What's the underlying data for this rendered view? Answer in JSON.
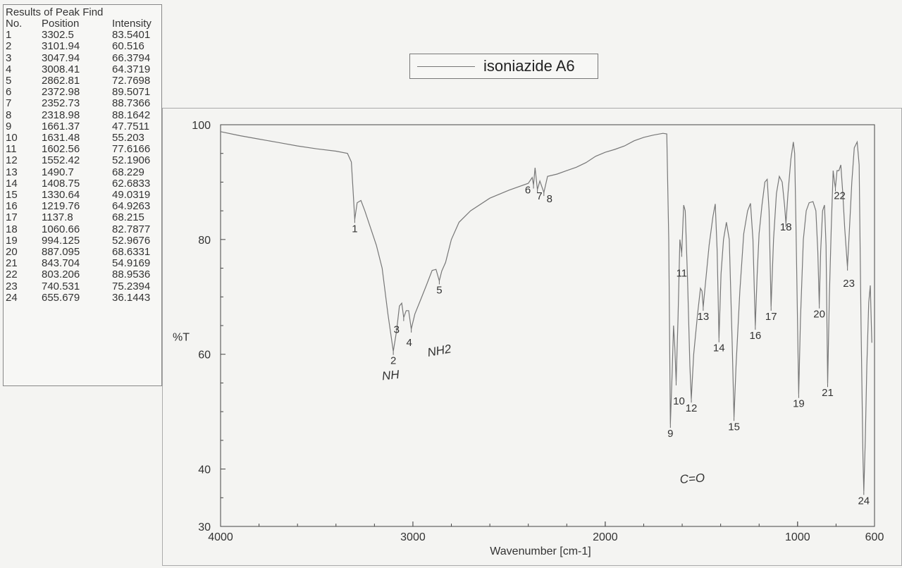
{
  "peak_table": {
    "title": "Results of Peak Find",
    "headers": [
      "No.",
      "Position",
      "Intensity"
    ],
    "rows": [
      [
        "1",
        "3302.5",
        "83.5401"
      ],
      [
        "2",
        "3101.94",
        "60.516"
      ],
      [
        "3",
        "3047.94",
        "66.3794"
      ],
      [
        "4",
        "3008.41",
        "64.3719"
      ],
      [
        "5",
        "2862.81",
        "72.7698"
      ],
      [
        "6",
        "2372.98",
        "89.5071"
      ],
      [
        "7",
        "2352.73",
        "88.7366"
      ],
      [
        "8",
        "2318.98",
        "88.1642"
      ],
      [
        "9",
        "1661.37",
        "47.7511"
      ],
      [
        "10",
        "1631.48",
        "55.203"
      ],
      [
        "11",
        "1602.56",
        "77.6166"
      ],
      [
        "12",
        "1552.42",
        "52.1906"
      ],
      [
        "13",
        "1490.7",
        "68.229"
      ],
      [
        "14",
        "1408.75",
        "62.6833"
      ],
      [
        "15",
        "1330.64",
        "49.0319"
      ],
      [
        "16",
        "1219.76",
        "64.9263"
      ],
      [
        "17",
        "1137.8",
        "68.215"
      ],
      [
        "18",
        "1060.66",
        "82.7877"
      ],
      [
        "19",
        "994.125",
        "52.9676"
      ],
      [
        "20",
        "887.095",
        "68.6331"
      ],
      [
        "21",
        "843.704",
        "54.9169"
      ],
      [
        "22",
        "803.206",
        "88.9536"
      ],
      [
        "23",
        "740.531",
        "75.2394"
      ],
      [
        "24",
        "655.679",
        "36.1443"
      ]
    ]
  },
  "chart_data": {
    "type": "line",
    "xlabel": "Wavenumber [cm-1]",
    "ylabel": "%T",
    "xlim": [
      4000,
      600
    ],
    "ylim": [
      30,
      100
    ],
    "x_ticks": [
      4000,
      3000,
      2000,
      1000,
      600
    ],
    "y_ticks": [
      100,
      80,
      60,
      40,
      30
    ],
    "legend": {
      "label": "isoniazide A6",
      "position": "top-center"
    },
    "series": [
      {
        "name": "isoniazide A6",
        "color": "#777777",
        "points": [
          [
            4000,
            98.8
          ],
          [
            3900,
            98.1
          ],
          [
            3800,
            97.5
          ],
          [
            3700,
            96.9
          ],
          [
            3600,
            96.3
          ],
          [
            3500,
            95.8
          ],
          [
            3400,
            95.4
          ],
          [
            3340,
            95.0
          ],
          [
            3320,
            93.5
          ],
          [
            3310,
            88
          ],
          [
            3302.5,
            83.5
          ],
          [
            3290,
            86.4
          ],
          [
            3270,
            86.8
          ],
          [
            3250,
            85
          ],
          [
            3220,
            82
          ],
          [
            3190,
            79
          ],
          [
            3160,
            75
          ],
          [
            3130,
            67
          ],
          [
            3101.94,
            60.5
          ],
          [
            3085,
            64
          ],
          [
            3070,
            68.4
          ],
          [
            3058,
            68.9
          ],
          [
            3047.94,
            66.4
          ],
          [
            3035,
            67.6
          ],
          [
            3022,
            67.6
          ],
          [
            3008.41,
            64.4
          ],
          [
            2990,
            67
          ],
          [
            2960,
            69.5
          ],
          [
            2930,
            72
          ],
          [
            2900,
            74.6
          ],
          [
            2880,
            74.8
          ],
          [
            2862.81,
            72.8
          ],
          [
            2850,
            74.5
          ],
          [
            2830,
            76
          ],
          [
            2800,
            80
          ],
          [
            2760,
            83
          ],
          [
            2700,
            85
          ],
          [
            2600,
            87.2
          ],
          [
            2500,
            88.6
          ],
          [
            2400,
            89.8
          ],
          [
            2380,
            90.8
          ],
          [
            2372.98,
            89.5
          ],
          [
            2365,
            92.5
          ],
          [
            2352.73,
            88.7
          ],
          [
            2340,
            90.2
          ],
          [
            2318.98,
            88.2
          ],
          [
            2300,
            91
          ],
          [
            2250,
            91.4
          ],
          [
            2200,
            92
          ],
          [
            2150,
            92.6
          ],
          [
            2100,
            93.4
          ],
          [
            2050,
            94.5
          ],
          [
            2000,
            95.2
          ],
          [
            1950,
            95.7
          ],
          [
            1900,
            96.3
          ],
          [
            1850,
            97.2
          ],
          [
            1800,
            97.8
          ],
          [
            1750,
            98.2
          ],
          [
            1700,
            98.5
          ],
          [
            1680,
            98.4
          ],
          [
            1670,
            80
          ],
          [
            1661.37,
            47.8
          ],
          [
            1652,
            57
          ],
          [
            1645,
            65
          ],
          [
            1638,
            61
          ],
          [
            1631.48,
            55.2
          ],
          [
            1622,
            66
          ],
          [
            1612,
            80
          ],
          [
            1602.56,
            77.6
          ],
          [
            1592,
            86
          ],
          [
            1584,
            85
          ],
          [
            1572,
            73
          ],
          [
            1560,
            58
          ],
          [
            1552.42,
            52.2
          ],
          [
            1540,
            60
          ],
          [
            1520,
            67
          ],
          [
            1505,
            71.5
          ],
          [
            1497,
            71
          ],
          [
            1490.7,
            68.2
          ],
          [
            1480,
            72
          ],
          [
            1460,
            79
          ],
          [
            1440,
            84
          ],
          [
            1428,
            86.2
          ],
          [
            1418,
            78
          ],
          [
            1408.75,
            62.7
          ],
          [
            1398,
            74
          ],
          [
            1385,
            80
          ],
          [
            1370,
            83
          ],
          [
            1355,
            80
          ],
          [
            1340,
            62
          ],
          [
            1330.64,
            49
          ],
          [
            1320,
            58
          ],
          [
            1300,
            71
          ],
          [
            1280,
            81
          ],
          [
            1260,
            85
          ],
          [
            1245,
            86.3
          ],
          [
            1232,
            80
          ],
          [
            1219.76,
            64.9
          ],
          [
            1210,
            74
          ],
          [
            1200,
            81
          ],
          [
            1185,
            86
          ],
          [
            1170,
            90
          ],
          [
            1158,
            90.5
          ],
          [
            1148,
            85
          ],
          [
            1137.8,
            68.2
          ],
          [
            1125,
            80
          ],
          [
            1110,
            88
          ],
          [
            1095,
            91
          ],
          [
            1080,
            90
          ],
          [
            1068,
            86
          ],
          [
            1060.66,
            82.8
          ],
          [
            1050,
            88
          ],
          [
            1035,
            94
          ],
          [
            1022,
            97
          ],
          [
            1015,
            95
          ],
          [
            1008,
            82
          ],
          [
            994.125,
            53
          ],
          [
            985,
            66
          ],
          [
            970,
            80
          ],
          [
            955,
            85
          ],
          [
            940,
            86.4
          ],
          [
            920,
            86.6
          ],
          [
            905,
            85
          ],
          [
            895,
            78
          ],
          [
            887.095,
            68.6
          ],
          [
            880,
            78
          ],
          [
            870,
            85
          ],
          [
            860,
            86
          ],
          [
            852,
            79
          ],
          [
            843.704,
            54.9
          ],
          [
            835,
            70
          ],
          [
            825,
            82
          ],
          [
            815,
            92
          ],
          [
            808,
            90
          ],
          [
            803.206,
            89
          ],
          [
            795,
            92
          ],
          [
            785,
            92
          ],
          [
            775,
            93
          ],
          [
            765,
            88
          ],
          [
            755,
            82
          ],
          [
            740.531,
            75.2
          ],
          [
            730,
            82
          ],
          [
            718,
            90
          ],
          [
            705,
            96
          ],
          [
            690,
            97
          ],
          [
            680,
            93
          ],
          [
            670,
            65
          ],
          [
            660,
            42
          ],
          [
            655.679,
            36.1
          ],
          [
            648,
            45
          ],
          [
            640,
            58
          ],
          [
            630,
            69
          ],
          [
            622,
            72
          ],
          [
            614,
            62
          ]
        ]
      }
    ],
    "peak_labels": [
      {
        "no": "1",
        "x": 3302.5,
        "y": 83.5
      },
      {
        "no": "2",
        "x": 3101.94,
        "y": 60.5
      },
      {
        "no": "3",
        "x": 3047.94,
        "y": 66.4
      },
      {
        "no": "4",
        "x": 3008.41,
        "y": 64.4
      },
      {
        "no": "5",
        "x": 2862.81,
        "y": 72.8
      },
      {
        "no": "6",
        "x": 2372.98,
        "y": 89.5
      },
      {
        "no": "7",
        "x": 2352.73,
        "y": 88.7
      },
      {
        "no": "8",
        "x": 2318.98,
        "y": 88.2
      },
      {
        "no": "9",
        "x": 1661.37,
        "y": 47.8
      },
      {
        "no": "10",
        "x": 1631.48,
        "y": 55.2
      },
      {
        "no": "11",
        "x": 1602.56,
        "y": 77.6
      },
      {
        "no": "12",
        "x": 1552.42,
        "y": 52.2
      },
      {
        "no": "13",
        "x": 1490.7,
        "y": 68.2
      },
      {
        "no": "14",
        "x": 1408.75,
        "y": 62.7
      },
      {
        "no": "15",
        "x": 1330.64,
        "y": 49
      },
      {
        "no": "16",
        "x": 1219.76,
        "y": 64.9
      },
      {
        "no": "17",
        "x": 1137.8,
        "y": 68.2
      },
      {
        "no": "18",
        "x": 1060.66,
        "y": 82.8
      },
      {
        "no": "19",
        "x": 994.125,
        "y": 53
      },
      {
        "no": "20",
        "x": 887.095,
        "y": 68.6
      },
      {
        "no": "21",
        "x": 843.704,
        "y": 54.9
      },
      {
        "no": "22",
        "x": 803.206,
        "y": 89
      },
      {
        "no": "23",
        "x": 740.531,
        "y": 75.2
      },
      {
        "no": "24",
        "x": 655.679,
        "y": 36.1
      }
    ],
    "handwritten_annotations": [
      "NH",
      "NH2",
      "C=O"
    ]
  }
}
